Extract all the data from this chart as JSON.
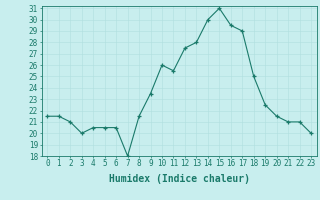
{
  "x": [
    0,
    1,
    2,
    3,
    4,
    5,
    6,
    7,
    8,
    9,
    10,
    11,
    12,
    13,
    14,
    15,
    16,
    17,
    18,
    19,
    20,
    21,
    22,
    23
  ],
  "y": [
    21.5,
    21.5,
    21.0,
    20.0,
    20.5,
    20.5,
    20.5,
    18.0,
    21.5,
    23.5,
    26.0,
    25.5,
    27.5,
    28.0,
    30.0,
    31.0,
    29.5,
    29.0,
    25.0,
    22.5,
    21.5,
    21.0,
    21.0,
    20.0
  ],
  "xlabel": "Humidex (Indice chaleur)",
  "ylim": [
    18,
    31
  ],
  "xlim": [
    -0.5,
    23.5
  ],
  "yticks": [
    18,
    19,
    20,
    21,
    22,
    23,
    24,
    25,
    26,
    27,
    28,
    29,
    30,
    31
  ],
  "xticks": [
    0,
    1,
    2,
    3,
    4,
    5,
    6,
    7,
    8,
    9,
    10,
    11,
    12,
    13,
    14,
    15,
    16,
    17,
    18,
    19,
    20,
    21,
    22,
    23
  ],
  "line_color": "#1a7a6a",
  "bg_color": "#c8eeee",
  "grid_color": "#b0dede",
  "xlabel_fontsize": 7,
  "tick_fontsize": 5.5
}
